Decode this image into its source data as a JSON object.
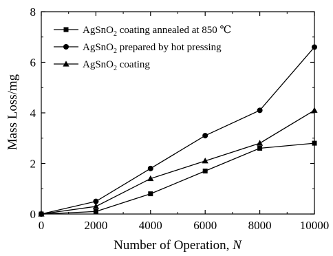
{
  "chart_data": {
    "type": "line",
    "title": "",
    "xlabel": "Number of Operation, ",
    "xlabel_var": "N",
    "ylabel": "Mass Loss/mg",
    "xlim": [
      0,
      10000
    ],
    "ylim": [
      0,
      8
    ],
    "grid": false,
    "legend_position": "top-left",
    "x_ticks": [
      0,
      2000,
      4000,
      6000,
      8000,
      10000
    ],
    "y_ticks": [
      0,
      2,
      4,
      6,
      8
    ],
    "x_tick_labels": [
      "0",
      "2000",
      "4000",
      "6000",
      "8000",
      "10000"
    ],
    "y_tick_labels": [
      "0",
      "2",
      "4",
      "6",
      "8"
    ],
    "x": [
      0,
      2000,
      4000,
      6000,
      8000,
      10000
    ],
    "series": [
      {
        "name_prefix": "AgSnO",
        "name_sub": "2",
        "name_suffix": " coating annealed at 850 ℃",
        "marker": "square",
        "values": [
          0,
          0.1,
          0.8,
          1.7,
          2.6,
          2.8
        ]
      },
      {
        "name_prefix": "AgSnO",
        "name_sub": "2",
        "name_suffix": " prepared by hot pressing",
        "marker": "circle",
        "values": [
          0,
          0.5,
          1.8,
          3.1,
          4.1,
          6.6
        ]
      },
      {
        "name_prefix": "AgSnO",
        "name_sub": "2",
        "name_suffix": " coating",
        "marker": "triangle",
        "values": [
          0,
          0.3,
          1.4,
          2.1,
          2.8,
          4.1
        ]
      }
    ]
  }
}
